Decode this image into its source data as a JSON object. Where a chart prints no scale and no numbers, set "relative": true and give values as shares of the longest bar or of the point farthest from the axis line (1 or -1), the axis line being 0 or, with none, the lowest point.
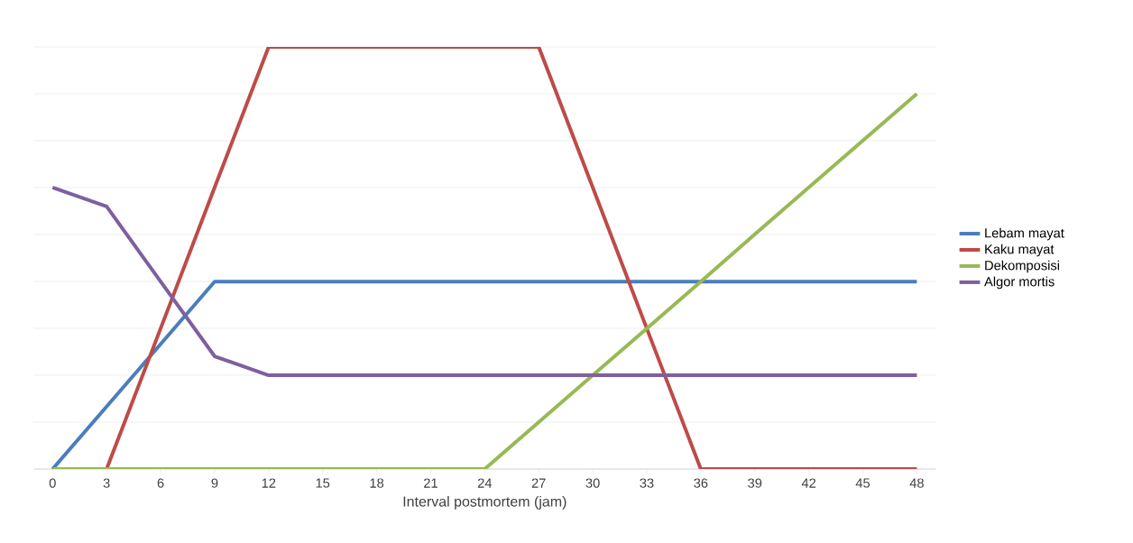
{
  "chart_data": {
    "type": "line",
    "xlabel": "Interval postmortem (jam)",
    "categories": [
      "0",
      "3",
      "6",
      "9",
      "12",
      "15",
      "18",
      "21",
      "24",
      "27",
      "30",
      "33",
      "36",
      "39",
      "42",
      "45",
      "48"
    ],
    "relative": true,
    "grid": "y",
    "legend": "right",
    "marker": "none",
    "line_style": "solid",
    "series": [
      {
        "name": "Lebam mayat",
        "color": "#4a7ebb",
        "values": [
          0,
          0.148,
          0.296,
          0.444,
          0.444,
          0.444,
          0.444,
          0.444,
          0.444,
          0.444,
          0.444,
          0.444,
          0.444,
          0.444,
          0.444,
          0.444,
          0.444
        ]
      },
      {
        "name": "Kaku mayat",
        "color": "#be4b48",
        "values": [
          0,
          0,
          0.333,
          0.667,
          1,
          1,
          1,
          1,
          1,
          1,
          0.667,
          0.333,
          0,
          0,
          0,
          0,
          0
        ]
      },
      {
        "name": "Dekomposisi",
        "color": "#98b954",
        "values": [
          0,
          0,
          0,
          0,
          0,
          0,
          0,
          0,
          0,
          0.111,
          0.222,
          0.333,
          0.444,
          0.556,
          0.667,
          0.778,
          0.889
        ]
      },
      {
        "name": "Algor mortis",
        "color": "#7d60a0",
        "values": [
          0.667,
          0.622,
          0.444,
          0.267,
          0.222,
          0.222,
          0.222,
          0.222,
          0.222,
          0.222,
          0.222,
          0.222,
          0.222,
          0.222,
          0.222,
          0.222,
          0.222
        ]
      }
    ]
  }
}
